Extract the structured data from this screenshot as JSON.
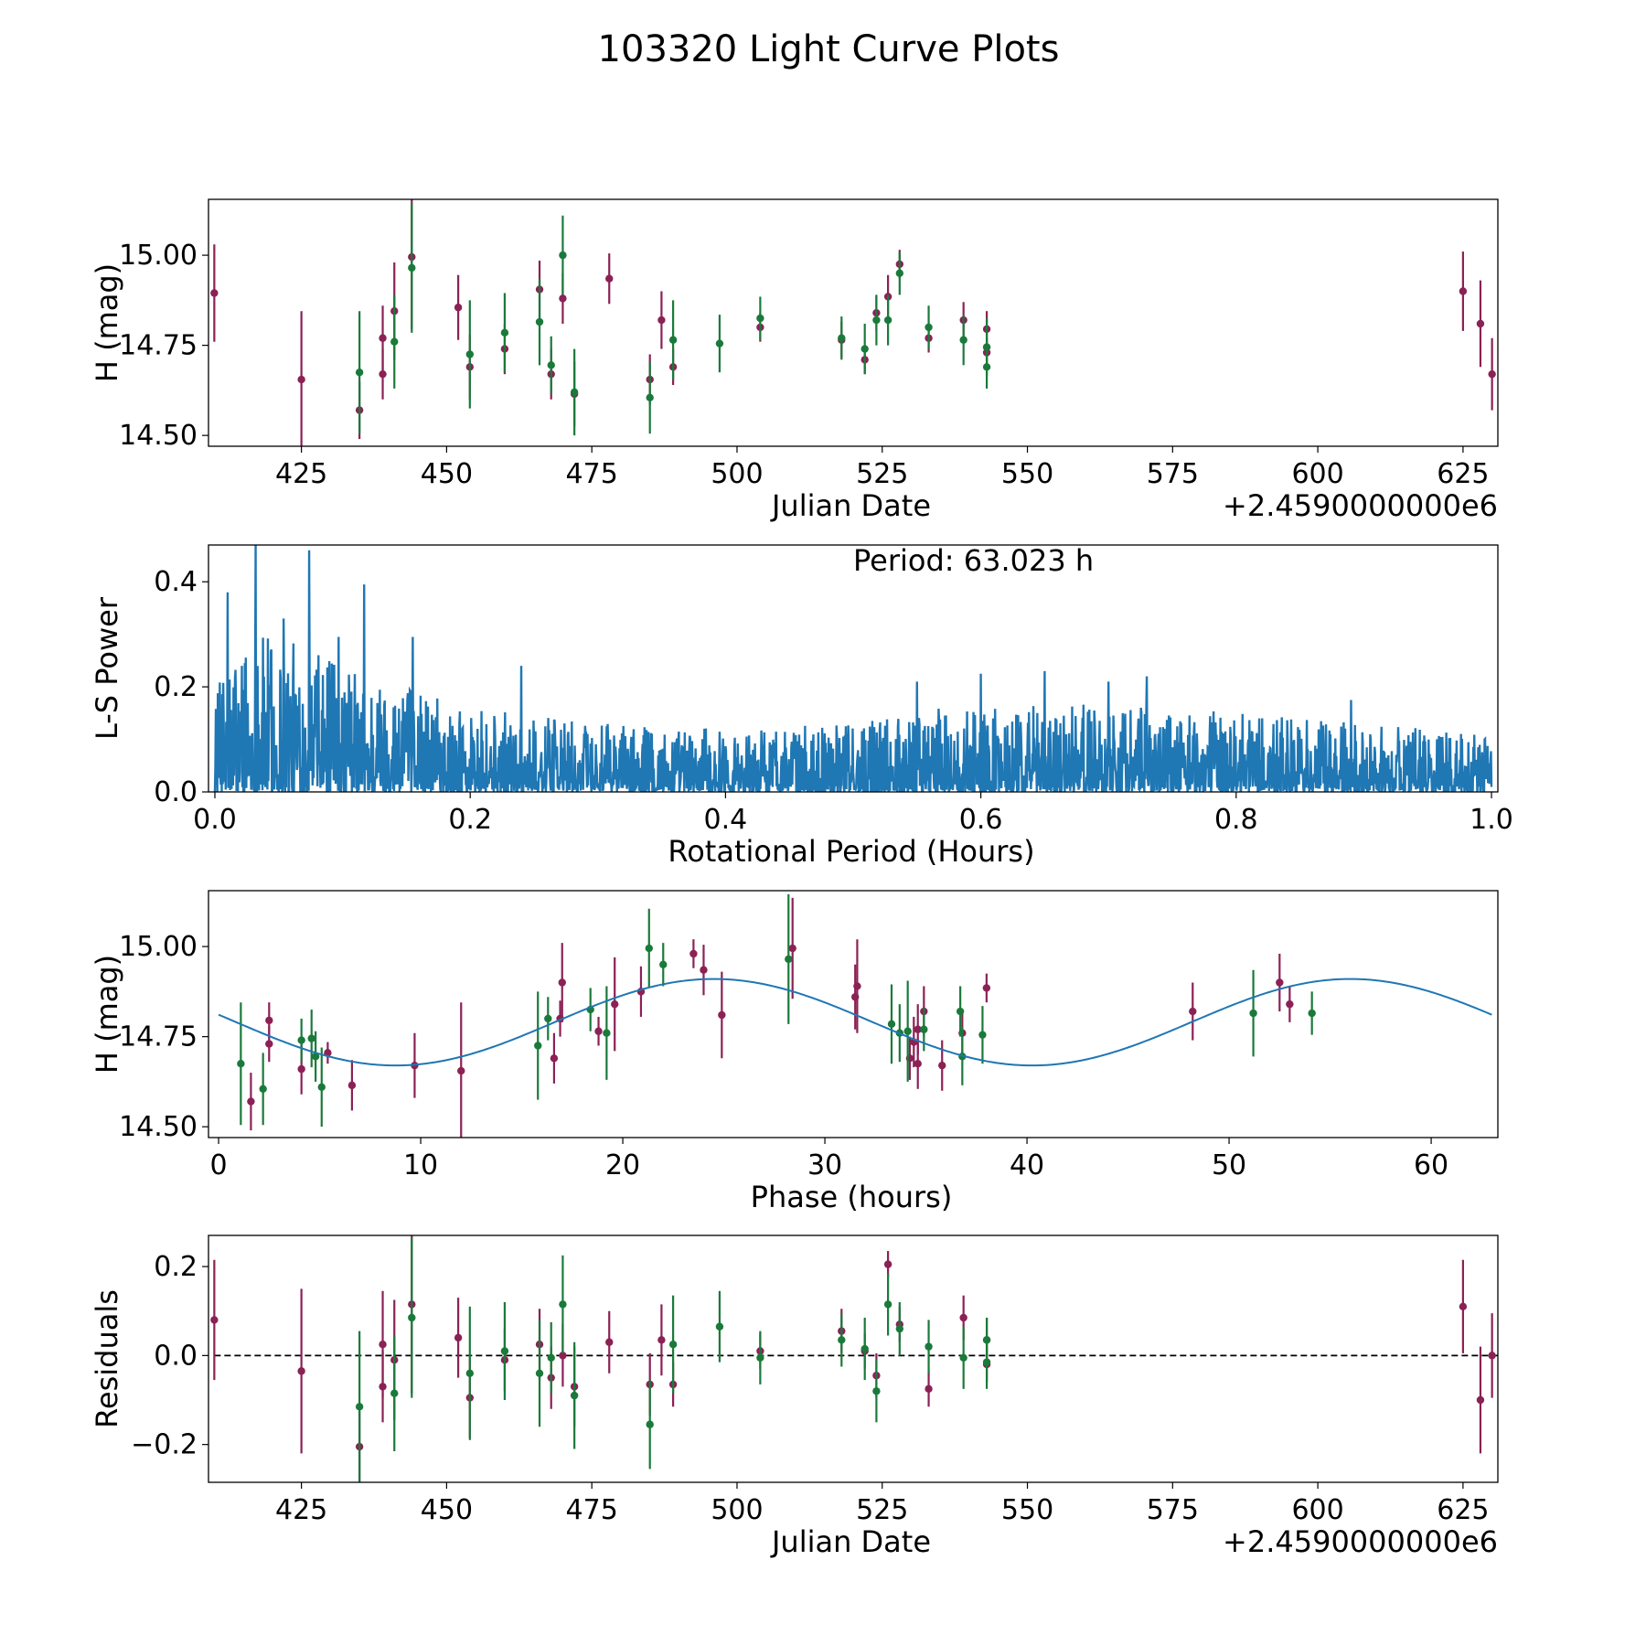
{
  "figure": {
    "title": "103320 Light Curve Plots"
  },
  "colors": {
    "purple": "#8b2155",
    "green": "#1a7a3a",
    "blue": "#1f77b4",
    "frame": "#000000"
  },
  "chart_data": [
    {
      "id": "lightcurve",
      "type": "scatter",
      "xlabel": "Julian Date",
      "ylabel": "H (mag)",
      "x_offset_label": "+2.4590000000e6",
      "xlim": [
        409,
        631
      ],
      "ylim": [
        14.47,
        15.155
      ],
      "xticks": [
        425,
        450,
        475,
        500,
        525,
        550,
        575,
        600,
        625
      ],
      "xtick_labels": [
        "425",
        "450",
        "475",
        "500",
        "525",
        "550",
        "575",
        "600",
        "625"
      ],
      "yticks": [
        14.5,
        14.75,
        15.0
      ],
      "ytick_labels": [
        "14.50",
        "14.75",
        "15.00"
      ],
      "series": [
        {
          "name": "purple",
          "color": "#8b2155",
          "points": [
            [
              410,
              14.895,
              0.135
            ],
            [
              425,
              14.655,
              0.19
            ],
            [
              435,
              14.57,
              0.08
            ],
            [
              439,
              14.77,
              0.09
            ],
            [
              439,
              14.67,
              0.07
            ],
            [
              441,
              14.845,
              0.135
            ],
            [
              444,
              14.995,
              0.2
            ],
            [
              452,
              14.855,
              0.09
            ],
            [
              454,
              14.69,
              0.09
            ],
            [
              460,
              14.74,
              0.07
            ],
            [
              466,
              14.905,
              0.08
            ],
            [
              468,
              14.67,
              0.07
            ],
            [
              470,
              14.88,
              0.07
            ],
            [
              472,
              14.615,
              0.09
            ],
            [
              478,
              14.935,
              0.07
            ],
            [
              485,
              14.655,
              0.07
            ],
            [
              487,
              14.82,
              0.08
            ],
            [
              489,
              14.69,
              0.05
            ],
            [
              504,
              14.8,
              0.04
            ],
            [
              518,
              14.765,
              0.05
            ],
            [
              522,
              14.71,
              0.04
            ],
            [
              524,
              14.84,
              0.05
            ],
            [
              526,
              14.885,
              0.06
            ],
            [
              528,
              14.975,
              0.04
            ],
            [
              533,
              14.77,
              0.04
            ],
            [
              539,
              14.82,
              0.05
            ],
            [
              543,
              14.73,
              0.04
            ],
            [
              543,
              14.795,
              0.05
            ],
            [
              625,
              14.9,
              0.11
            ],
            [
              628,
              14.81,
              0.12
            ],
            [
              630,
              14.67,
              0.1
            ]
          ]
        },
        {
          "name": "green",
          "color": "#1a7a3a",
          "points": [
            [
              435,
              14.675,
              0.17
            ],
            [
              441,
              14.76,
              0.13
            ],
            [
              444,
              14.965,
              0.18
            ],
            [
              454,
              14.725,
              0.15
            ],
            [
              460,
              14.785,
              0.11
            ],
            [
              466,
              14.815,
              0.12
            ],
            [
              468,
              14.695,
              0.08
            ],
            [
              470,
              15.0,
              0.11
            ],
            [
              472,
              14.62,
              0.12
            ],
            [
              485,
              14.605,
              0.1
            ],
            [
              489,
              14.765,
              0.11
            ],
            [
              497,
              14.755,
              0.08
            ],
            [
              504,
              14.825,
              0.06
            ],
            [
              518,
              14.77,
              0.06
            ],
            [
              522,
              14.74,
              0.07
            ],
            [
              524,
              14.82,
              0.07
            ],
            [
              526,
              14.82,
              0.07
            ],
            [
              528,
              14.95,
              0.06
            ],
            [
              533,
              14.8,
              0.06
            ],
            [
              539,
              14.765,
              0.07
            ],
            [
              543,
              14.745,
              0.08
            ],
            [
              543,
              14.69,
              0.06
            ]
          ]
        }
      ]
    },
    {
      "id": "periodogram",
      "type": "line",
      "xlabel": "Rotational Period (Hours)",
      "ylabel": "L-S Power",
      "xlim": [
        -0.005,
        1.005
      ],
      "ylim": [
        0.0,
        0.47
      ],
      "xticks": [
        0.0,
        0.2,
        0.4,
        0.6,
        0.8,
        1.0
      ],
      "xtick_labels": [
        "0.0",
        "0.2",
        "0.4",
        "0.6",
        "0.8",
        "1.0"
      ],
      "yticks": [
        0.0,
        0.2,
        0.4
      ],
      "ytick_labels": [
        "0.0",
        "0.2",
        "0.4"
      ],
      "annotation": "Period: 63.023 h",
      "color": "#1f77b4",
      "envelope": [
        [
          0.0,
          0.19
        ],
        [
          0.02,
          0.3
        ],
        [
          0.05,
          0.3
        ],
        [
          0.1,
          0.24
        ],
        [
          0.15,
          0.2
        ],
        [
          0.2,
          0.16
        ],
        [
          0.3,
          0.13
        ],
        [
          0.4,
          0.12
        ],
        [
          0.5,
          0.13
        ],
        [
          0.55,
          0.16
        ],
        [
          0.6,
          0.16
        ],
        [
          0.7,
          0.17
        ],
        [
          0.8,
          0.15
        ],
        [
          0.9,
          0.13
        ],
        [
          1.0,
          0.11
        ]
      ],
      "peaks": [
        [
          0.032,
          0.47
        ],
        [
          0.074,
          0.46
        ],
        [
          0.117,
          0.395
        ],
        [
          0.155,
          0.295
        ],
        [
          0.097,
          0.295
        ],
        [
          0.054,
          0.33
        ],
        [
          0.01,
          0.38
        ],
        [
          0.24,
          0.24
        ],
        [
          0.6,
          0.225
        ],
        [
          0.65,
          0.23
        ],
        [
          0.73,
          0.22
        ],
        [
          0.55,
          0.21
        ],
        [
          0.7,
          0.21
        ],
        [
          0.89,
          0.175
        ]
      ]
    },
    {
      "id": "phased",
      "type": "scatter",
      "xlabel": "Phase (hours)",
      "ylabel": "H (mag)",
      "xlim": [
        -0.5,
        63.3
      ],
      "ylim": [
        14.47,
        15.155
      ],
      "xticks": [
        0,
        10,
        20,
        30,
        40,
        50,
        60
      ],
      "xtick_labels": [
        "0",
        "10",
        "20",
        "30",
        "40",
        "50",
        "60"
      ],
      "yticks": [
        14.5,
        14.75,
        15.0
      ],
      "ytick_labels": [
        "14.50",
        "14.75",
        "15.00"
      ],
      "fit": {
        "mean": 14.79,
        "amplitude": 0.12,
        "period": 31.5,
        "phase_peak": 24.5,
        "x_range": [
          0,
          63.0
        ]
      },
      "series": [
        {
          "name": "purple",
          "color": "#8b2155",
          "points": [
            [
              1.6,
              14.57,
              0.08
            ],
            [
              2.5,
              14.795,
              0.05
            ],
            [
              2.5,
              14.73,
              0.05
            ],
            [
              4.1,
              14.66,
              0.07
            ],
            [
              5.4,
              14.705,
              0.03
            ],
            [
              6.6,
              14.615,
              0.07
            ],
            [
              9.7,
              14.67,
              0.09
            ],
            [
              12.0,
              14.655,
              0.19
            ],
            [
              16.6,
              14.69,
              0.07
            ],
            [
              16.9,
              14.8,
              0.05
            ],
            [
              17.0,
              14.9,
              0.11
            ],
            [
              18.8,
              14.765,
              0.04
            ],
            [
              19.6,
              14.84,
              0.13
            ],
            [
              20.9,
              14.875,
              0.07
            ],
            [
              23.5,
              14.98,
              0.04
            ],
            [
              24.0,
              14.935,
              0.07
            ],
            [
              24.9,
              14.81,
              0.12
            ],
            [
              28.4,
              14.995,
              0.14
            ],
            [
              31.5,
              14.86,
              0.09
            ],
            [
              31.6,
              14.89,
              0.13
            ],
            [
              34.2,
              14.69,
              0.06
            ],
            [
              34.4,
              14.735,
              0.07
            ],
            [
              34.6,
              14.77,
              0.07
            ],
            [
              34.6,
              14.675,
              0.07
            ],
            [
              34.9,
              14.82,
              0.07
            ],
            [
              35.8,
              14.67,
              0.07
            ],
            [
              36.8,
              14.76,
              0.06
            ],
            [
              38.0,
              14.885,
              0.04
            ],
            [
              48.2,
              14.82,
              0.08
            ],
            [
              52.5,
              14.9,
              0.08
            ],
            [
              53.0,
              14.84,
              0.05
            ]
          ]
        },
        {
          "name": "green",
          "color": "#1a7a3a",
          "points": [
            [
              1.1,
              14.675,
              0.17
            ],
            [
              2.2,
              14.605,
              0.1
            ],
            [
              4.1,
              14.74,
              0.06
            ],
            [
              4.6,
              14.745,
              0.08
            ],
            [
              4.8,
              14.695,
              0.07
            ],
            [
              5.1,
              14.61,
              0.11
            ],
            [
              15.8,
              14.725,
              0.15
            ],
            [
              16.3,
              14.8,
              0.06
            ],
            [
              18.4,
              14.825,
              0.06
            ],
            [
              19.2,
              14.76,
              0.13
            ],
            [
              21.3,
              14.995,
              0.11
            ],
            [
              22.0,
              14.95,
              0.06
            ],
            [
              28.2,
              14.965,
              0.18
            ],
            [
              33.3,
              14.785,
              0.11
            ],
            [
              33.7,
              14.76,
              0.08
            ],
            [
              34.1,
              14.765,
              0.14
            ],
            [
              34.9,
              14.77,
              0.06
            ],
            [
              36.7,
              14.82,
              0.07
            ],
            [
              36.8,
              14.695,
              0.08
            ],
            [
              37.8,
              14.755,
              0.08
            ],
            [
              51.2,
              14.815,
              0.12
            ],
            [
              54.1,
              14.815,
              0.06
            ]
          ]
        }
      ]
    },
    {
      "id": "residuals",
      "type": "scatter",
      "xlabel": "Julian Date",
      "ylabel": "Residuals",
      "x_offset_label": "+2.4590000000e6",
      "xlim": [
        409,
        631
      ],
      "ylim": [
        -0.285,
        0.27
      ],
      "xticks": [
        425,
        450,
        475,
        500,
        525,
        550,
        575,
        600,
        625
      ],
      "xtick_labels": [
        "425",
        "450",
        "475",
        "500",
        "525",
        "550",
        "575",
        "600",
        "625"
      ],
      "yticks": [
        -0.2,
        0.0,
        0.2
      ],
      "ytick_labels": [
        "−0.2",
        "0.0",
        "0.2"
      ],
      "reference_line": 0.0,
      "series": [
        {
          "name": "purple",
          "color": "#8b2155",
          "points": [
            [
              410,
              0.08,
              0.135
            ],
            [
              425,
              -0.035,
              0.185
            ],
            [
              435,
              -0.205,
              0.08
            ],
            [
              439,
              0.025,
              0.12
            ],
            [
              439,
              -0.07,
              0.08
            ],
            [
              441,
              -0.01,
              0.135
            ],
            [
              444,
              0.115,
              0.2
            ],
            [
              452,
              0.04,
              0.09
            ],
            [
              454,
              -0.095,
              0.09
            ],
            [
              460,
              -0.01,
              0.07
            ],
            [
              466,
              0.025,
              0.08
            ],
            [
              468,
              -0.05,
              0.07
            ],
            [
              470,
              0.0,
              0.07
            ],
            [
              472,
              -0.07,
              0.09
            ],
            [
              478,
              0.03,
              0.07
            ],
            [
              485,
              -0.065,
              0.07
            ],
            [
              487,
              0.035,
              0.08
            ],
            [
              489,
              -0.065,
              0.05
            ],
            [
              504,
              0.01,
              0.04
            ],
            [
              518,
              0.055,
              0.05
            ],
            [
              522,
              0.01,
              0.04
            ],
            [
              524,
              -0.045,
              0.05
            ],
            [
              526,
              0.205,
              0.03
            ],
            [
              528,
              0.07,
              0.04
            ],
            [
              533,
              -0.075,
              0.04
            ],
            [
              539,
              0.085,
              0.05
            ],
            [
              543,
              -0.02,
              0.04
            ],
            [
              543,
              0.035,
              0.05
            ],
            [
              625,
              0.11,
              0.105
            ],
            [
              628,
              -0.1,
              0.12
            ],
            [
              630,
              0.0,
              0.095
            ]
          ]
        },
        {
          "name": "green",
          "color": "#1a7a3a",
          "points": [
            [
              435,
              -0.115,
              0.17
            ],
            [
              441,
              -0.085,
              0.13
            ],
            [
              444,
              0.085,
              0.18
            ],
            [
              454,
              -0.04,
              0.15
            ],
            [
              460,
              0.01,
              0.11
            ],
            [
              466,
              -0.04,
              0.12
            ],
            [
              468,
              -0.005,
              0.08
            ],
            [
              470,
              0.115,
              0.11
            ],
            [
              472,
              -0.09,
              0.12
            ],
            [
              485,
              -0.155,
              0.1
            ],
            [
              489,
              0.025,
              0.11
            ],
            [
              497,
              0.065,
              0.08
            ],
            [
              504,
              -0.005,
              0.06
            ],
            [
              518,
              0.035,
              0.06
            ],
            [
              522,
              0.015,
              0.07
            ],
            [
              524,
              -0.08,
              0.07
            ],
            [
              526,
              0.115,
              0.07
            ],
            [
              528,
              0.06,
              0.06
            ],
            [
              533,
              0.02,
              0.06
            ],
            [
              539,
              -0.005,
              0.07
            ],
            [
              543,
              0.035,
              0.05
            ],
            [
              543,
              -0.015,
              0.06
            ]
          ]
        }
      ]
    }
  ]
}
